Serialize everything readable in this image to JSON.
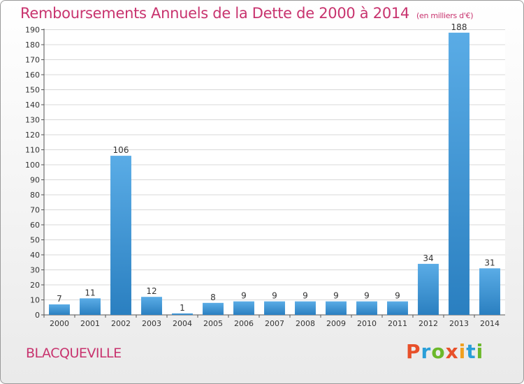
{
  "header": {
    "title": "Remboursements Annuels de la Dette de 2000 à 2014",
    "subtitle": "(en milliers d'€)"
  },
  "footer": {
    "commune": "BLACQUEVILLE",
    "logo": "Proxiti"
  },
  "colors": {
    "accent": "#c8336e",
    "bar_top": "#5aace6",
    "bar_bottom": "#2a7fc0",
    "logo_letters": [
      "#e8502a",
      "#2a9fd8",
      "#6cb82a",
      "#e8502a",
      "#f0a020",
      "#2a9fd8",
      "#6cb82a"
    ]
  },
  "chart_data": {
    "type": "bar",
    "title": "Remboursements Annuels de la Dette de 2000 à 2014",
    "subtitle": "(en milliers d'€)",
    "xlabel": "",
    "ylabel": "",
    "categories": [
      "2000",
      "2001",
      "2002",
      "2003",
      "2004",
      "2005",
      "2006",
      "2007",
      "2008",
      "2009",
      "2010",
      "2011",
      "2012",
      "2013",
      "2014"
    ],
    "values": [
      7,
      11,
      106,
      12,
      1,
      8,
      9,
      9,
      9,
      9,
      9,
      9,
      34,
      188,
      31
    ],
    "ylim": [
      0,
      190
    ],
    "yticks": [
      0,
      10,
      20,
      30,
      40,
      50,
      60,
      70,
      80,
      90,
      100,
      110,
      120,
      130,
      140,
      150,
      160,
      170,
      180,
      190
    ],
    "grid": true,
    "legend": "none"
  }
}
